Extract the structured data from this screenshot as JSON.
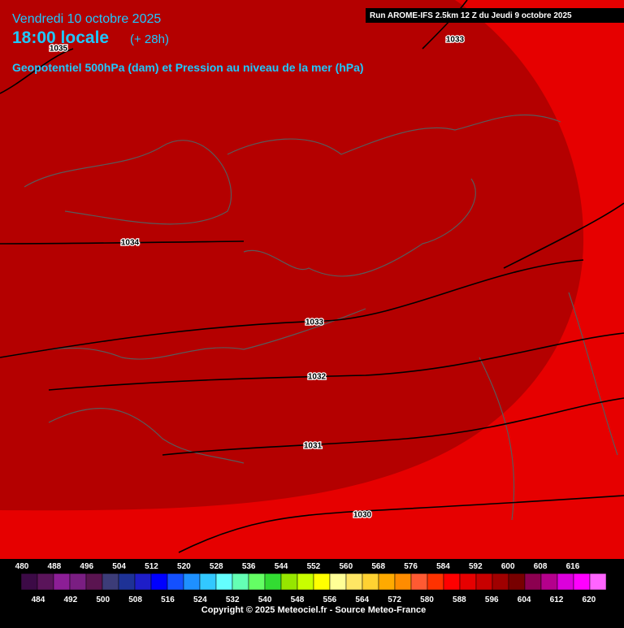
{
  "header": {
    "date": "Vendredi 10 octobre 2025",
    "time": "18:00 locale",
    "lead": "(+ 28h)",
    "subtitle": "Geopotentiel 500hPa (dam) et Pression au niveau de la mer (hPa)",
    "run": "Run AROME-IFS 2.5km 12 Z du Jeudi 9 octobre 2025"
  },
  "isobars": [
    1035,
    1033,
    1034,
    1033,
    1032,
    1031,
    1030
  ],
  "legend": {
    "levels": [
      480,
      484,
      488,
      492,
      496,
      500,
      504,
      508,
      512,
      516,
      520,
      524,
      528,
      532,
      536,
      540,
      544,
      548,
      552,
      556,
      560,
      564,
      568,
      572,
      576,
      580,
      584,
      588,
      592,
      596,
      600,
      604,
      608,
      612,
      616,
      620
    ],
    "colors": [
      "#3c0a46",
      "#5a145a",
      "#8c1e96",
      "#7a1e82",
      "#5a1450",
      "#3c3c78",
      "#1e3296",
      "#1e1ec8",
      "#0000ff",
      "#1450ff",
      "#1e90ff",
      "#32c8ff",
      "#64ffff",
      "#64ffb4",
      "#64ff64",
      "#32dc32",
      "#96e600",
      "#c8ff00",
      "#ffff00",
      "#ffff96",
      "#ffe664",
      "#ffd232",
      "#ffaa00",
      "#ff8c00",
      "#ff5a32",
      "#ff3200",
      "#ff0000",
      "#e60000",
      "#c80000",
      "#a00000",
      "#780000",
      "#8c0050",
      "#b4008c",
      "#dc00dc",
      "#ff00ff",
      "#ff64ff"
    ]
  },
  "footer": {
    "copyright": "Copyright © 2025 Meteociel.fr - Source Meteo-France"
  }
}
